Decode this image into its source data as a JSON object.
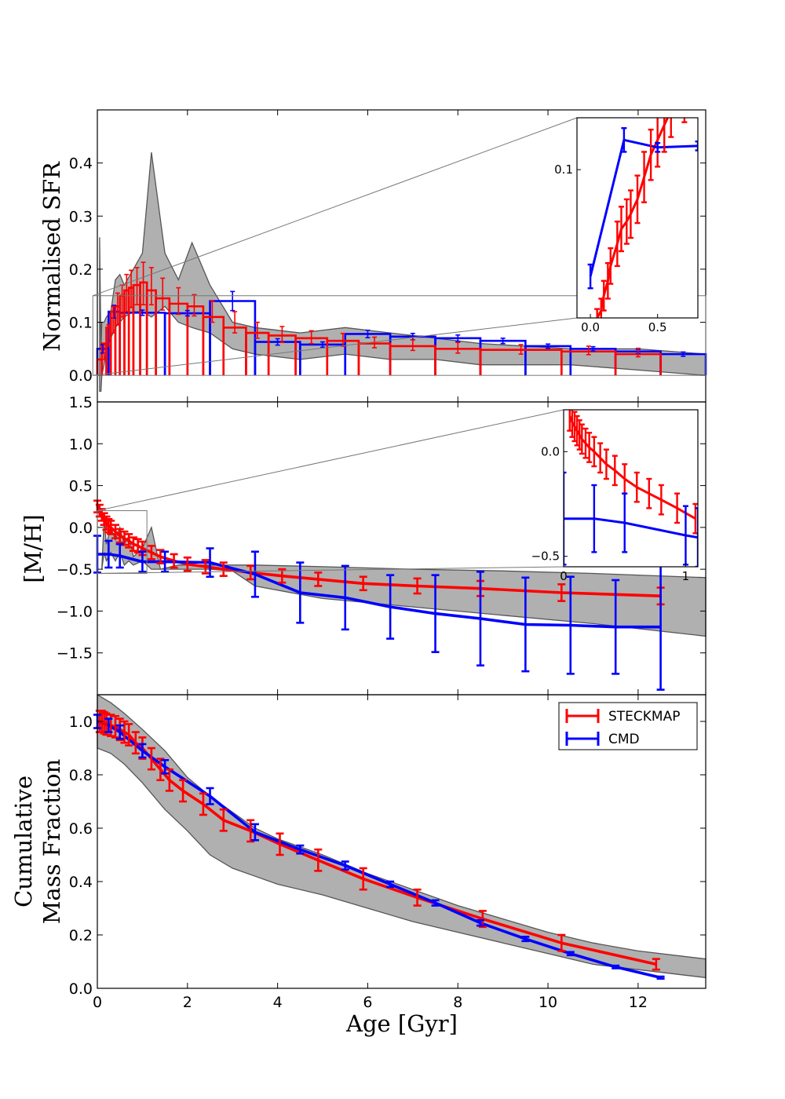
{
  "chart_data": [
    {
      "panel": "sfr",
      "type": "line",
      "ylabel": "Normalised SFR",
      "xlim": [
        0,
        13.5
      ],
      "ylim": [
        -0.05,
        0.5
      ],
      "yticks": [
        "0.0",
        "0.1",
        "0.2",
        "0.3",
        "0.4"
      ],
      "grid": false,
      "band": {
        "x": [
          0.05,
          0.08,
          0.1,
          0.15,
          0.2,
          0.3,
          0.4,
          0.5,
          0.6,
          0.8,
          1.0,
          1.2,
          1.5,
          1.8,
          2.1,
          2.5,
          3.0,
          3.5,
          4.5,
          5.5,
          6.5,
          7.5,
          8.5,
          10.5,
          12.0,
          13.5
        ],
        "upper": [
          0.26,
          0.05,
          0.1,
          0.1,
          0.11,
          0.12,
          0.18,
          0.19,
          0.17,
          0.2,
          0.23,
          0.42,
          0.23,
          0.18,
          0.25,
          0.17,
          0.1,
          0.09,
          0.08,
          0.09,
          0.08,
          0.07,
          0.06,
          0.05,
          0.05,
          0.04
        ],
        "lower": [
          -0.03,
          -0.03,
          0.0,
          0.02,
          0.05,
          0.07,
          0.09,
          0.1,
          0.11,
          0.12,
          0.12,
          0.11,
          0.13,
          0.1,
          0.09,
          0.08,
          0.05,
          0.04,
          0.03,
          0.04,
          0.03,
          0.03,
          0.02,
          0.02,
          0.01,
          0.0
        ]
      },
      "series": [
        {
          "name": "STECKMAP",
          "color": "#ff0000",
          "step_edges": [
            0.0,
            0.1,
            0.2,
            0.3,
            0.4,
            0.5,
            0.6,
            0.7,
            0.8,
            0.95,
            1.1,
            1.3,
            1.6,
            2.0,
            2.35,
            2.8,
            3.3,
            3.8,
            4.4,
            5.1,
            5.8,
            6.5,
            7.5,
            8.5,
            10.3,
            11.5,
            12.5
          ],
          "step_values": [
            0.03,
            0.06,
            0.09,
            0.12,
            0.13,
            0.15,
            0.16,
            0.165,
            0.17,
            0.175,
            0.16,
            0.145,
            0.135,
            0.13,
            0.11,
            0.09,
            0.08,
            0.075,
            0.07,
            0.065,
            0.06,
            0.055,
            0.05,
            0.048,
            0.045,
            0.04
          ],
          "x": [
            0.15,
            0.25,
            0.35,
            0.45,
            0.55,
            0.65,
            0.75,
            0.88,
            1.02,
            1.2,
            1.45,
            1.8,
            2.15,
            2.55,
            3.05,
            3.55,
            4.1,
            4.75,
            5.45,
            6.15,
            7.0,
            8.0,
            9.4,
            10.9,
            12.0
          ],
          "y": [
            0.045,
            0.075,
            0.105,
            0.125,
            0.14,
            0.155,
            0.163,
            0.168,
            0.173,
            0.168,
            0.153,
            0.14,
            0.132,
            0.12,
            0.1,
            0.085,
            0.077,
            0.072,
            0.067,
            0.062,
            0.057,
            0.052,
            0.049,
            0.047,
            0.043
          ],
          "yerr": [
            0.015,
            0.02,
            0.025,
            0.03,
            0.03,
            0.035,
            0.035,
            0.035,
            0.04,
            0.035,
            0.03,
            0.025,
            0.02,
            0.02,
            0.02,
            0.015,
            0.015,
            0.012,
            0.012,
            0.01,
            0.01,
            0.01,
            0.009,
            0.008,
            0.008
          ]
        },
        {
          "name": "CMD",
          "color": "#0000ff",
          "step_edges": [
            0.0,
            0.25,
            0.5,
            1.5,
            2.5,
            3.5,
            4.5,
            5.5,
            6.5,
            7.5,
            8.5,
            9.5,
            10.5,
            11.5,
            12.5,
            13.5
          ],
          "step_values": [
            0.05,
            0.12,
            0.118,
            0.117,
            0.14,
            0.063,
            0.058,
            0.078,
            0.073,
            0.07,
            0.065,
            0.055,
            0.05,
            0.045,
            0.04
          ],
          "x": [
            0.12,
            0.37,
            1.0,
            2.0,
            3.0,
            4.0,
            5.0,
            6.0,
            7.0,
            8.0,
            9.0,
            10.0,
            11.0,
            12.0,
            13.0
          ],
          "y": [
            0.05,
            0.12,
            0.118,
            0.117,
            0.14,
            0.063,
            0.058,
            0.078,
            0.073,
            0.07,
            0.065,
            0.055,
            0.05,
            0.045,
            0.04
          ],
          "yerr": [
            0.008,
            0.012,
            0.005,
            0.005,
            0.018,
            0.006,
            0.005,
            0.007,
            0.006,
            0.006,
            0.005,
            0.004,
            0.004,
            0.004,
            0.004
          ]
        }
      ],
      "inset": {
        "xlim": [
          -0.1,
          0.8
        ],
        "ylim": [
          0.0,
          0.135
        ],
        "xticks": [
          "0.0",
          "0.5"
        ],
        "yticks": [
          "0.1"
        ],
        "red_x": [
          0.05,
          0.08,
          0.1,
          0.13,
          0.15,
          0.2,
          0.23,
          0.27,
          0.3,
          0.35,
          0.4,
          0.45,
          0.5,
          0.55,
          0.6,
          0.7,
          0.78
        ],
        "red_y": [
          0.0,
          0.005,
          0.015,
          0.025,
          0.035,
          0.05,
          0.06,
          0.065,
          0.07,
          0.08,
          0.095,
          0.11,
          0.12,
          0.13,
          0.14,
          0.15,
          0.16
        ],
        "red_err": [
          0.006,
          0.008,
          0.01,
          0.012,
          0.012,
          0.015,
          0.015,
          0.015,
          0.016,
          0.016,
          0.017,
          0.017,
          0.018,
          0.018,
          0.018,
          0.018,
          0.018
        ],
        "blue_x": [
          0.0,
          0.25,
          0.5,
          0.8
        ],
        "blue_y": [
          0.028,
          0.12,
          0.115,
          0.116
        ],
        "blue_err": [
          0.008,
          0.008,
          0.003,
          0.003
        ]
      }
    },
    {
      "panel": "metallicity",
      "type": "line",
      "ylabel": "[M/H]",
      "xlim": [
        0,
        13.5
      ],
      "ylim": [
        -2.0,
        1.5
      ],
      "yticks": [
        "1.5",
        "1.0",
        "0.5",
        "0.0",
        "−0.5",
        "−1.0",
        "−1.5"
      ],
      "grid": false,
      "band": {
        "x": [
          0.1,
          0.15,
          0.2,
          0.3,
          0.4,
          0.5,
          0.6,
          0.7,
          0.8,
          1.0,
          1.2,
          1.4,
          1.8,
          2.5,
          3.0,
          3.5,
          5.0,
          7.0,
          9.0,
          11.0,
          13.5
        ],
        "upper": [
          -0.5,
          0.1,
          -0.2,
          0.0,
          -0.15,
          0.0,
          -0.2,
          -0.1,
          -0.35,
          -0.25,
          0.0,
          -0.5,
          -0.45,
          -0.45,
          -0.45,
          -0.45,
          -0.47,
          -0.5,
          -0.52,
          -0.55,
          -0.6
        ],
        "lower": [
          -0.5,
          -0.3,
          -0.4,
          -0.3,
          -0.4,
          -0.3,
          -0.45,
          -0.4,
          -0.45,
          -0.4,
          -0.5,
          -0.5,
          -0.5,
          -0.5,
          -0.52,
          -0.7,
          -0.85,
          -0.95,
          -1.05,
          -1.15,
          -1.3
        ]
      },
      "series": [
        {
          "name": "STECKMAP",
          "color": "#ff0000",
          "x": [
            0.0,
            0.05,
            0.1,
            0.15,
            0.2,
            0.25,
            0.3,
            0.4,
            0.5,
            0.6,
            0.7,
            0.8,
            0.9,
            1.0,
            1.2,
            1.4,
            1.7,
            2.0,
            2.4,
            2.8,
            3.4,
            4.1,
            4.9,
            5.9,
            7.1,
            8.5,
            10.3,
            12.5
          ],
          "y": [
            0.25,
            0.2,
            0.15,
            0.1,
            0.05,
            0.02,
            0.0,
            -0.05,
            -0.1,
            -0.13,
            -0.16,
            -0.2,
            -0.22,
            -0.25,
            -0.3,
            -0.35,
            -0.4,
            -0.44,
            -0.47,
            -0.5,
            -0.54,
            -0.58,
            -0.62,
            -0.67,
            -0.7,
            -0.73,
            -0.78,
            -0.82
          ],
          "yerr": [
            0.07,
            0.07,
            0.07,
            0.07,
            0.08,
            0.08,
            0.08,
            0.08,
            0.08,
            0.08,
            0.08,
            0.08,
            0.08,
            0.08,
            0.08,
            0.08,
            0.08,
            0.08,
            0.08,
            0.08,
            0.08,
            0.08,
            0.08,
            0.08,
            0.09,
            0.09,
            0.1,
            0.1
          ]
        },
        {
          "name": "CMD",
          "color": "#0000ff",
          "x": [
            0.0,
            0.25,
            0.5,
            1.0,
            1.5,
            2.5,
            3.5,
            4.5,
            5.5,
            6.5,
            7.5,
            8.5,
            9.5,
            10.5,
            11.5,
            12.5
          ],
          "y": [
            -0.32,
            -0.32,
            -0.34,
            -0.41,
            -0.41,
            -0.42,
            -0.56,
            -0.78,
            -0.84,
            -0.95,
            -1.03,
            -1.09,
            -1.16,
            -1.17,
            -1.19,
            -1.19
          ],
          "yerr": [
            0.22,
            0.16,
            0.14,
            0.12,
            0.12,
            0.17,
            0.27,
            0.36,
            0.38,
            0.38,
            0.46,
            0.56,
            0.56,
            0.58,
            0.56,
            0.75
          ]
        }
      ],
      "inset": {
        "xlim": [
          0.0,
          1.1
        ],
        "ylim": [
          -0.55,
          0.2
        ],
        "xticks": [
          "0",
          "1"
        ],
        "yticks": [
          "0.0",
          "−0.5"
        ],
        "red_x": [
          0.05,
          0.07,
          0.09,
          0.11,
          0.13,
          0.15,
          0.18,
          0.21,
          0.25,
          0.3,
          0.35,
          0.42,
          0.5,
          0.6,
          0.7,
          0.8,
          0.93,
          1.08
        ],
        "red_y": [
          0.17,
          0.14,
          0.12,
          0.1,
          0.08,
          0.06,
          0.04,
          0.02,
          0.0,
          -0.03,
          -0.06,
          -0.09,
          -0.13,
          -0.17,
          -0.2,
          -0.23,
          -0.27,
          -0.32
        ],
        "red_err": [
          0.07,
          0.07,
          0.07,
          0.07,
          0.07,
          0.07,
          0.07,
          0.07,
          0.07,
          0.07,
          0.07,
          0.07,
          0.07,
          0.07,
          0.07,
          0.07,
          0.07,
          0.07
        ],
        "blue_x": [
          0.0,
          0.25,
          0.5,
          1.0,
          1.1
        ],
        "blue_y": [
          -0.32,
          -0.32,
          -0.34,
          -0.4,
          -0.41
        ],
        "blue_err": [
          0.22,
          0.16,
          0.14,
          0.14,
          0.14
        ]
      }
    },
    {
      "panel": "cumulative",
      "type": "line",
      "ylabel_line1": "Cumulative",
      "ylabel_line2": "Mass Fraction",
      "xlabel": "Age [Gyr]",
      "xlim": [
        0,
        13.5
      ],
      "ylim": [
        0.0,
        1.1
      ],
      "xticks": [
        "0",
        "2",
        "4",
        "6",
        "8",
        "10",
        "12"
      ],
      "yticks": [
        "0.0",
        "0.2",
        "0.4",
        "0.6",
        "0.8",
        "1.0"
      ],
      "legend": {
        "position": "top-right",
        "entries": [
          "STECKMAP",
          "CMD"
        ]
      },
      "grid": false,
      "band": {
        "x": [
          0.0,
          0.3,
          0.6,
          1.0,
          1.5,
          2.0,
          2.5,
          3.0,
          3.5,
          4.0,
          5.0,
          6.0,
          7.0,
          8.0,
          9.0,
          10.0,
          11.0,
          12.0,
          13.5
        ],
        "upper": [
          1.1,
          1.07,
          1.03,
          0.97,
          0.89,
          0.79,
          0.72,
          0.66,
          0.6,
          0.56,
          0.5,
          0.43,
          0.37,
          0.31,
          0.26,
          0.21,
          0.17,
          0.14,
          0.11
        ],
        "lower": [
          0.9,
          0.88,
          0.84,
          0.77,
          0.67,
          0.59,
          0.5,
          0.45,
          0.42,
          0.39,
          0.35,
          0.3,
          0.25,
          0.21,
          0.17,
          0.13,
          0.09,
          0.07,
          0.04
        ]
      },
      "series": [
        {
          "name": "STECKMAP",
          "color": "#ff0000",
          "x": [
            0.05,
            0.1,
            0.15,
            0.2,
            0.3,
            0.4,
            0.5,
            0.6,
            0.7,
            0.85,
            1.0,
            1.2,
            1.4,
            1.6,
            1.9,
            2.35,
            2.8,
            3.4,
            4.05,
            4.9,
            5.9,
            7.1,
            8.55,
            10.3,
            12.4
          ],
          "y": [
            1.0,
            1.0,
            0.995,
            0.99,
            0.985,
            0.98,
            0.97,
            0.96,
            0.95,
            0.92,
            0.9,
            0.86,
            0.82,
            0.78,
            0.74,
            0.69,
            0.63,
            0.59,
            0.54,
            0.48,
            0.41,
            0.34,
            0.26,
            0.17,
            0.09
          ],
          "yerr": [
            0.04,
            0.04,
            0.04,
            0.04,
            0.04,
            0.04,
            0.04,
            0.04,
            0.04,
            0.04,
            0.04,
            0.04,
            0.04,
            0.04,
            0.04,
            0.04,
            0.04,
            0.04,
            0.04,
            0.04,
            0.04,
            0.03,
            0.03,
            0.03,
            0.02
          ]
        },
        {
          "name": "CMD",
          "color": "#0000ff",
          "x": [
            0.0,
            0.25,
            0.5,
            1.0,
            1.5,
            2.5,
            3.5,
            4.5,
            5.5,
            6.5,
            7.5,
            8.5,
            9.5,
            10.5,
            11.5,
            12.5
          ],
          "y": [
            1.0,
            0.985,
            0.96,
            0.89,
            0.83,
            0.72,
            0.585,
            0.52,
            0.46,
            0.39,
            0.32,
            0.245,
            0.185,
            0.13,
            0.08,
            0.04
          ],
          "yerr": [
            0.025,
            0.025,
            0.025,
            0.025,
            0.025,
            0.03,
            0.03,
            0.015,
            0.015,
            0.01,
            0.01,
            0.01,
            0.008,
            0.006,
            0.005,
            0.004
          ]
        }
      ]
    }
  ]
}
